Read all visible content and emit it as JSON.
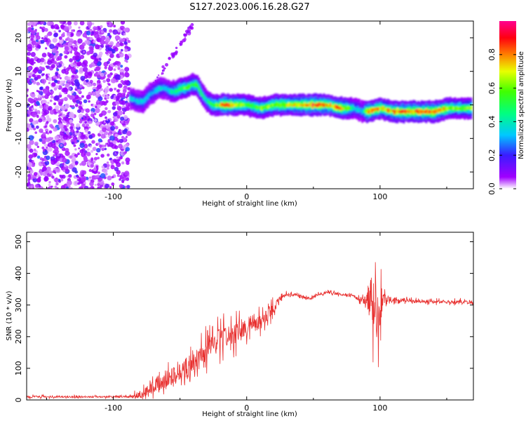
{
  "figure": {
    "title": "S127.2023.006.16.28.G27"
  },
  "chart_data": [
    {
      "type": "heatmap",
      "xlabel": "Height of straight line (km)",
      "ylabel": "Frequency (Hz)",
      "xlim": [
        -165,
        170
      ],
      "ylim": [
        -25,
        25
      ],
      "xticks": [
        -100,
        0,
        100
      ],
      "xtick_labels": [
        "-100",
        "0",
        "100"
      ],
      "yticks": [
        -20,
        -10,
        0,
        10,
        20
      ],
      "ytick_labels": [
        "-20",
        "-10",
        "0",
        "10",
        "20"
      ],
      "colorbar": {
        "label": "Normalized spectral amplitude",
        "range": [
          0,
          1
        ],
        "ticks": [
          0.0,
          0.2,
          0.4,
          0.6,
          0.8
        ],
        "tick_labels": [
          "0.0",
          "0.2",
          "0.4",
          "0.6",
          "0.8"
        ],
        "colormap": "gist_rainbow (white→violet→blue→cyan→green→yellow→red→magenta)"
      },
      "noise_region_x": [
        -165,
        -88
      ],
      "ridge": {
        "x": [
          -88,
          -82,
          -78,
          -74,
          -70,
          -66,
          -62,
          -58,
          -54,
          -50,
          -46,
          -42,
          -38,
          -34,
          -30,
          -26,
          -22,
          -18,
          -10,
          0,
          10,
          20,
          30,
          40,
          50,
          60,
          70,
          80,
          86,
          90,
          100,
          110,
          120,
          130,
          140,
          150,
          160,
          168
        ],
        "freq": [
          2,
          1,
          1,
          3,
          4,
          5,
          5,
          4,
          4,
          5,
          5,
          6,
          6,
          3,
          1,
          0,
          0,
          0,
          0,
          0,
          -1,
          0,
          0,
          0,
          0,
          0,
          -1,
          -1,
          -2,
          -2,
          -1,
          -2,
          -2,
          -2,
          -2,
          -1,
          -1,
          -1
        ],
        "amplitude": [
          0.3,
          0.3,
          0.35,
          0.3,
          0.3,
          0.35,
          0.3,
          0.35,
          0.45,
          0.5,
          0.55,
          0.5,
          0.55,
          0.45,
          0.4,
          0.5,
          0.55,
          0.8,
          0.65,
          0.5,
          0.55,
          0.6,
          0.65,
          0.75,
          0.85,
          0.7,
          0.8,
          0.35,
          0.3,
          0.8,
          0.7,
          0.75,
          0.8,
          0.8,
          0.8,
          0.65,
          0.5,
          0.6
        ]
      }
    },
    {
      "type": "line",
      "xlabel": "Height of straight line (km)",
      "ylabel": "SNR (10 * v/v)",
      "xlim": [
        -165,
        170
      ],
      "ylim": [
        0,
        530
      ],
      "xticks": [
        -100,
        0,
        100
      ],
      "xtick_labels": [
        "-100",
        "0",
        "100"
      ],
      "yticks": [
        0,
        100,
        200,
        300,
        400,
        500
      ],
      "ytick_labels": [
        "0",
        "100",
        "200",
        "300",
        "400",
        "500"
      ],
      "grid": false,
      "series": [
        {
          "color": "#e8302f",
          "x": [
            -165,
            -140,
            -110,
            -90,
            -80,
            -70,
            -60,
            -50,
            -40,
            -30,
            -20,
            -10,
            0,
            10,
            20,
            25,
            30,
            40,
            45,
            50,
            55,
            60,
            70,
            80,
            85,
            90,
            94,
            96,
            98,
            100,
            102,
            104,
            110,
            120,
            130,
            140,
            150,
            160,
            170
          ],
          "baseline": [
            10,
            10,
            10,
            10,
            15,
            40,
            60,
            90,
            120,
            160,
            190,
            210,
            230,
            250,
            290,
            320,
            335,
            330,
            320,
            325,
            335,
            340,
            335,
            330,
            315,
            315,
            315,
            315,
            310,
            315,
            315,
            320,
            315,
            315,
            310,
            310,
            310,
            310,
            310
          ],
          "jitter": [
            8,
            6,
            5,
            6,
            30,
            40,
            60,
            70,
            80,
            90,
            80,
            80,
            70,
            60,
            40,
            15,
            10,
            10,
            10,
            10,
            10,
            10,
            10,
            10,
            15,
            40,
            200,
            220,
            220,
            200,
            60,
            30,
            15,
            12,
            12,
            12,
            12,
            12,
            12
          ]
        }
      ]
    }
  ]
}
